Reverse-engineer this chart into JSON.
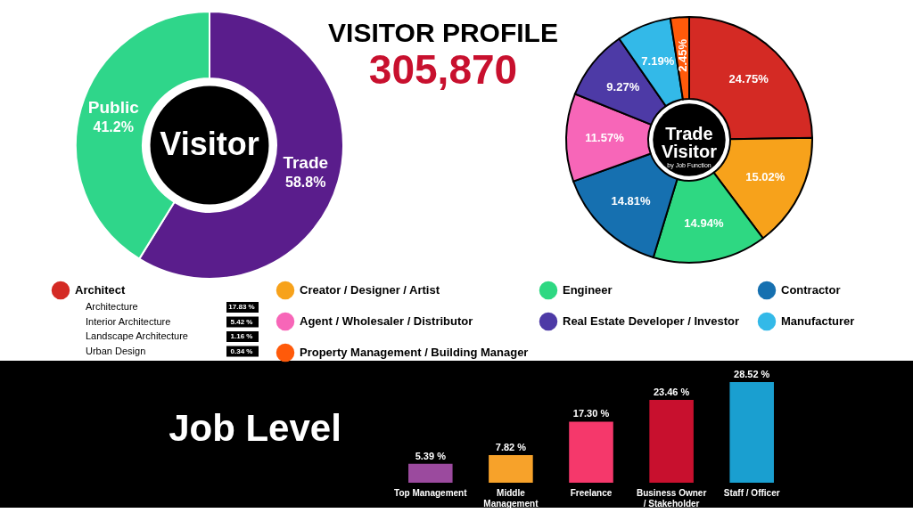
{
  "chart_data": [
    {
      "type": "donut",
      "title": "VISITOR PROFILE",
      "subtitle": "305,870",
      "categories": [
        "Trade",
        "Public"
      ],
      "values": [
        58.8,
        41.2
      ],
      "colors": [
        "#5a1d8c",
        "#2fd68a"
      ],
      "value_labels": [
        "58.8%",
        "41.2%"
      ],
      "annotations": [
        "Visitor"
      ]
    },
    {
      "type": "donut",
      "title": "Trade Visitor",
      "subtitle": "by Job Function",
      "categories": [
        "Architect",
        "Creator / Designer / Artist",
        "Engineer",
        "Contractor",
        "Agent / Wholesaler / Distributor",
        "Real Estate Developer / Investor",
        "Manufacturer",
        "Property Management / Building Manager"
      ],
      "values": [
        24.75,
        15.02,
        14.94,
        14.81,
        11.57,
        9.27,
        7.19,
        2.45
      ],
      "colors": [
        "#d42a24",
        "#f7a21b",
        "#2ed882",
        "#1670b0",
        "#f766b8",
        "#4d3aa6",
        "#33b9e8",
        "#ff5a0a"
      ],
      "value_labels": [
        "24.75%",
        "15.02%",
        "14.94%",
        "14.81%",
        "11.57%",
        "9.27%",
        "7.19%",
        "2.45%"
      ],
      "legend": "bottom",
      "annotations": [
        "Architecture",
        "17.83 %",
        "Interior Architecture",
        "5.42 %",
        "Landscape Architecture",
        "1.16 %",
        "Urban Design",
        "0.34 %"
      ]
    },
    {
      "type": "bar",
      "title": "Job Level",
      "categories": [
        "Top Management",
        "Middle Management",
        "Freelance",
        "Business Owner / Stakeholder",
        "Staff / Officer"
      ],
      "values": [
        5.39,
        7.82,
        17.3,
        23.46,
        28.52
      ],
      "colors": [
        "#9b4a9e",
        "#f7a22a",
        "#f5386b",
        "#c8102e",
        "#1a9fd0"
      ],
      "value_labels": [
        "5.39 %",
        "7.82 %",
        "17.30 %",
        "23.46 %",
        "28.52 %"
      ],
      "tick_labels": "x"
    }
  ]
}
